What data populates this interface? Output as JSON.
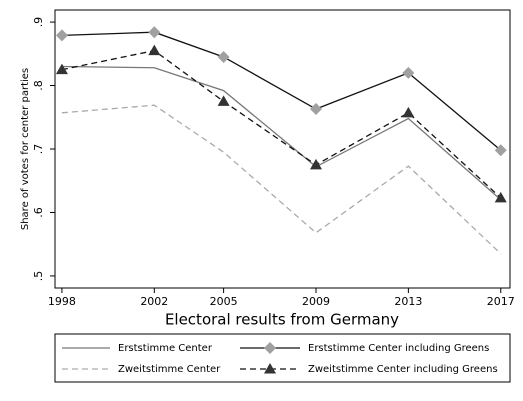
{
  "chart_data": {
    "type": "line",
    "x_label": "Electoral results from Germany",
    "y_label": "Share of votes for center parties",
    "x": [
      1998,
      2002,
      2005,
      2009,
      2013,
      2017
    ],
    "xlim": [
      1997.7,
      2017.4
    ],
    "xticks": [
      1998,
      2002,
      2005,
      2009,
      2013,
      2017
    ],
    "ylim": [
      0.481,
      0.919
    ],
    "yticks": [
      {
        "value": 0.5,
        "label": ".5"
      },
      {
        "value": 0.6,
        "label": ".6"
      },
      {
        "value": 0.7,
        "label": ".7"
      },
      {
        "value": 0.8,
        "label": ".8"
      },
      {
        "value": 0.9,
        "label": ".9"
      }
    ],
    "series": [
      {
        "name": "Erststimme Center",
        "color": "#777777",
        "dash": false,
        "marker": "none",
        "values": [
          0.83,
          0.828,
          0.792,
          0.672,
          0.748,
          0.62
        ]
      },
      {
        "name": "Erststimme Center including Greens",
        "color": "#111111",
        "marker_color": "#a0a0a0",
        "dash": false,
        "marker": "diamond",
        "values": [
          0.879,
          0.884,
          0.845,
          0.763,
          0.82,
          0.698
        ]
      },
      {
        "name": "Zweitstimme Center",
        "color": "#aaaaaa",
        "dash": true,
        "marker": "none",
        "values": [
          0.757,
          0.769,
          0.695,
          0.568,
          0.673,
          0.535
        ]
      },
      {
        "name": "Zweitstimme Center including Greens",
        "color": "#111111",
        "marker_color": "#333333",
        "dash": true,
        "marker": "triangle",
        "values": [
          0.825,
          0.855,
          0.775,
          0.675,
          0.757,
          0.623
        ]
      }
    ]
  }
}
